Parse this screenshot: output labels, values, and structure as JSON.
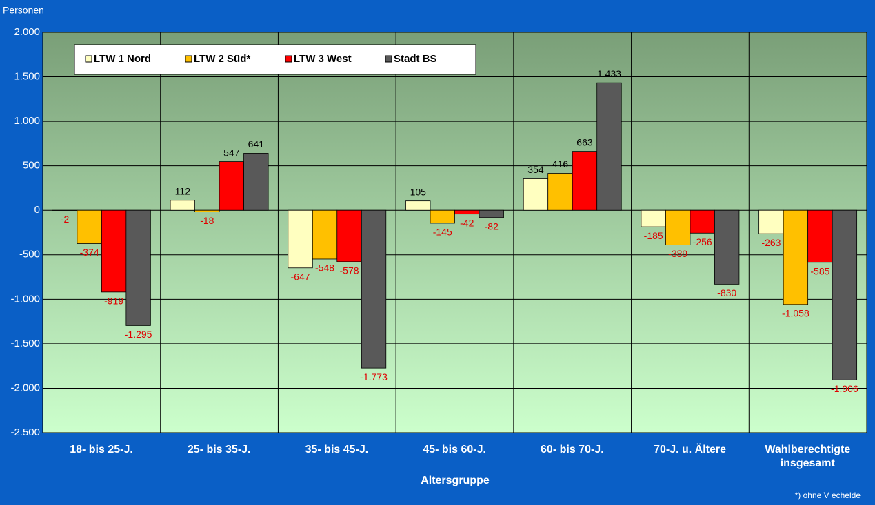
{
  "chart_data": {
    "type": "bar",
    "y_label": "Personen",
    "x_label": "Altersgruppe",
    "footnote": "*) ohne V echelde",
    "categories": [
      "18- bis 25-J.",
      "25- bis 35-J.",
      "35- bis 45-J.",
      "45- bis 60-J.",
      "60- bis 70-J.",
      "70-J. u. Ältere",
      "Wahlberechtigte insgesamt"
    ],
    "series": [
      {
        "name": "LTW 1 Nord",
        "color": "#ffffc0",
        "values": [
          -2,
          112,
          -647,
          105,
          354,
          -185,
          -263
        ],
        "value_labels": [
          "-2",
          "112",
          "-647",
          "105",
          "354",
          "-185",
          "-263"
        ]
      },
      {
        "name": "LTW 2 Süd*",
        "color": "#ffc000",
        "values": [
          -374,
          -18,
          -548,
          -145,
          416,
          -389,
          -1058
        ],
        "value_labels": [
          "-374",
          "-18",
          "-548",
          "-145",
          "416",
          "-389",
          "-1.058"
        ]
      },
      {
        "name": "LTW 3 West",
        "color": "#ff0000",
        "values": [
          -919,
          547,
          -578,
          -42,
          663,
          -256,
          -585
        ],
        "value_labels": [
          "-919",
          "547",
          "-578",
          "-42",
          "663",
          "-256",
          "-585"
        ]
      },
      {
        "name": "Stadt BS",
        "color": "#595959",
        "values": [
          -1295,
          641,
          -1773,
          -82,
          1433,
          -830,
          -1906
        ],
        "value_labels": [
          "-1.295",
          "641",
          "-1.773",
          "-82",
          "1.433",
          "-830",
          "-1.906"
        ]
      }
    ],
    "ylim": [
      -2500,
      2000
    ],
    "yticks": [
      {
        "value": -2500,
        "label": "-2.500"
      },
      {
        "value": -2000,
        "label": "-2.000"
      },
      {
        "value": -1500,
        "label": "-1.500"
      },
      {
        "value": -1000,
        "label": "-1.000"
      },
      -500,
      0,
      500,
      {
        "value": 1000,
        "label": "1.000"
      },
      {
        "value": 1500,
        "label": "1.500"
      },
      {
        "value": 2000,
        "label": "2.000"
      }
    ],
    "grid": true,
    "legend": "top-left"
  }
}
